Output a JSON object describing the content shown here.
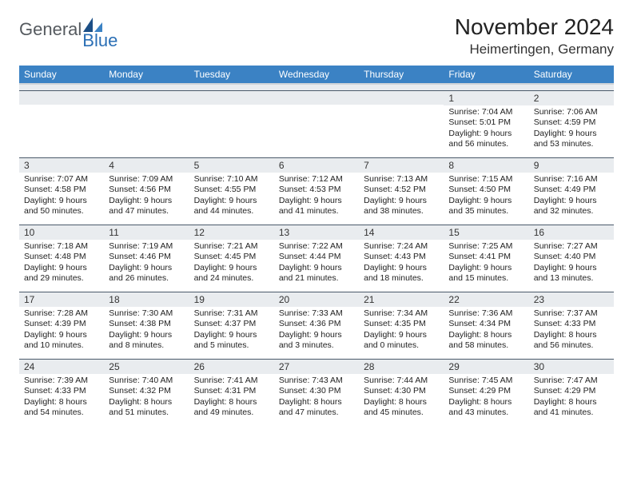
{
  "brand": {
    "general": "General",
    "blue": "Blue",
    "general_color": "#555a5f",
    "blue_color": "#2b6fb5"
  },
  "title": "November 2024",
  "location": "Heimertingen, Germany",
  "header_bg": "#3b82c4",
  "header_fg": "#ffffff",
  "daynum_bg": "#e9ecef",
  "rule_color": "#4a5a6a",
  "weekdays": [
    "Sunday",
    "Monday",
    "Tuesday",
    "Wednesday",
    "Thursday",
    "Friday",
    "Saturday"
  ],
  "weeks": [
    [
      null,
      null,
      null,
      null,
      null,
      {
        "n": "1",
        "sr": "Sunrise: 7:04 AM",
        "ss": "Sunset: 5:01 PM",
        "d1": "Daylight: 9 hours",
        "d2": "and 56 minutes."
      },
      {
        "n": "2",
        "sr": "Sunrise: 7:06 AM",
        "ss": "Sunset: 4:59 PM",
        "d1": "Daylight: 9 hours",
        "d2": "and 53 minutes."
      }
    ],
    [
      {
        "n": "3",
        "sr": "Sunrise: 7:07 AM",
        "ss": "Sunset: 4:58 PM",
        "d1": "Daylight: 9 hours",
        "d2": "and 50 minutes."
      },
      {
        "n": "4",
        "sr": "Sunrise: 7:09 AM",
        "ss": "Sunset: 4:56 PM",
        "d1": "Daylight: 9 hours",
        "d2": "and 47 minutes."
      },
      {
        "n": "5",
        "sr": "Sunrise: 7:10 AM",
        "ss": "Sunset: 4:55 PM",
        "d1": "Daylight: 9 hours",
        "d2": "and 44 minutes."
      },
      {
        "n": "6",
        "sr": "Sunrise: 7:12 AM",
        "ss": "Sunset: 4:53 PM",
        "d1": "Daylight: 9 hours",
        "d2": "and 41 minutes."
      },
      {
        "n": "7",
        "sr": "Sunrise: 7:13 AM",
        "ss": "Sunset: 4:52 PM",
        "d1": "Daylight: 9 hours",
        "d2": "and 38 minutes."
      },
      {
        "n": "8",
        "sr": "Sunrise: 7:15 AM",
        "ss": "Sunset: 4:50 PM",
        "d1": "Daylight: 9 hours",
        "d2": "and 35 minutes."
      },
      {
        "n": "9",
        "sr": "Sunrise: 7:16 AM",
        "ss": "Sunset: 4:49 PM",
        "d1": "Daylight: 9 hours",
        "d2": "and 32 minutes."
      }
    ],
    [
      {
        "n": "10",
        "sr": "Sunrise: 7:18 AM",
        "ss": "Sunset: 4:48 PM",
        "d1": "Daylight: 9 hours",
        "d2": "and 29 minutes."
      },
      {
        "n": "11",
        "sr": "Sunrise: 7:19 AM",
        "ss": "Sunset: 4:46 PM",
        "d1": "Daylight: 9 hours",
        "d2": "and 26 minutes."
      },
      {
        "n": "12",
        "sr": "Sunrise: 7:21 AM",
        "ss": "Sunset: 4:45 PM",
        "d1": "Daylight: 9 hours",
        "d2": "and 24 minutes."
      },
      {
        "n": "13",
        "sr": "Sunrise: 7:22 AM",
        "ss": "Sunset: 4:44 PM",
        "d1": "Daylight: 9 hours",
        "d2": "and 21 minutes."
      },
      {
        "n": "14",
        "sr": "Sunrise: 7:24 AM",
        "ss": "Sunset: 4:43 PM",
        "d1": "Daylight: 9 hours",
        "d2": "and 18 minutes."
      },
      {
        "n": "15",
        "sr": "Sunrise: 7:25 AM",
        "ss": "Sunset: 4:41 PM",
        "d1": "Daylight: 9 hours",
        "d2": "and 15 minutes."
      },
      {
        "n": "16",
        "sr": "Sunrise: 7:27 AM",
        "ss": "Sunset: 4:40 PM",
        "d1": "Daylight: 9 hours",
        "d2": "and 13 minutes."
      }
    ],
    [
      {
        "n": "17",
        "sr": "Sunrise: 7:28 AM",
        "ss": "Sunset: 4:39 PM",
        "d1": "Daylight: 9 hours",
        "d2": "and 10 minutes."
      },
      {
        "n": "18",
        "sr": "Sunrise: 7:30 AM",
        "ss": "Sunset: 4:38 PM",
        "d1": "Daylight: 9 hours",
        "d2": "and 8 minutes."
      },
      {
        "n": "19",
        "sr": "Sunrise: 7:31 AM",
        "ss": "Sunset: 4:37 PM",
        "d1": "Daylight: 9 hours",
        "d2": "and 5 minutes."
      },
      {
        "n": "20",
        "sr": "Sunrise: 7:33 AM",
        "ss": "Sunset: 4:36 PM",
        "d1": "Daylight: 9 hours",
        "d2": "and 3 minutes."
      },
      {
        "n": "21",
        "sr": "Sunrise: 7:34 AM",
        "ss": "Sunset: 4:35 PM",
        "d1": "Daylight: 9 hours",
        "d2": "and 0 minutes."
      },
      {
        "n": "22",
        "sr": "Sunrise: 7:36 AM",
        "ss": "Sunset: 4:34 PM",
        "d1": "Daylight: 8 hours",
        "d2": "and 58 minutes."
      },
      {
        "n": "23",
        "sr": "Sunrise: 7:37 AM",
        "ss": "Sunset: 4:33 PM",
        "d1": "Daylight: 8 hours",
        "d2": "and 56 minutes."
      }
    ],
    [
      {
        "n": "24",
        "sr": "Sunrise: 7:39 AM",
        "ss": "Sunset: 4:33 PM",
        "d1": "Daylight: 8 hours",
        "d2": "and 54 minutes."
      },
      {
        "n": "25",
        "sr": "Sunrise: 7:40 AM",
        "ss": "Sunset: 4:32 PM",
        "d1": "Daylight: 8 hours",
        "d2": "and 51 minutes."
      },
      {
        "n": "26",
        "sr": "Sunrise: 7:41 AM",
        "ss": "Sunset: 4:31 PM",
        "d1": "Daylight: 8 hours",
        "d2": "and 49 minutes."
      },
      {
        "n": "27",
        "sr": "Sunrise: 7:43 AM",
        "ss": "Sunset: 4:30 PM",
        "d1": "Daylight: 8 hours",
        "d2": "and 47 minutes."
      },
      {
        "n": "28",
        "sr": "Sunrise: 7:44 AM",
        "ss": "Sunset: 4:30 PM",
        "d1": "Daylight: 8 hours",
        "d2": "and 45 minutes."
      },
      {
        "n": "29",
        "sr": "Sunrise: 7:45 AM",
        "ss": "Sunset: 4:29 PM",
        "d1": "Daylight: 8 hours",
        "d2": "and 43 minutes."
      },
      {
        "n": "30",
        "sr": "Sunrise: 7:47 AM",
        "ss": "Sunset: 4:29 PM",
        "d1": "Daylight: 8 hours",
        "d2": "and 41 minutes."
      }
    ]
  ]
}
